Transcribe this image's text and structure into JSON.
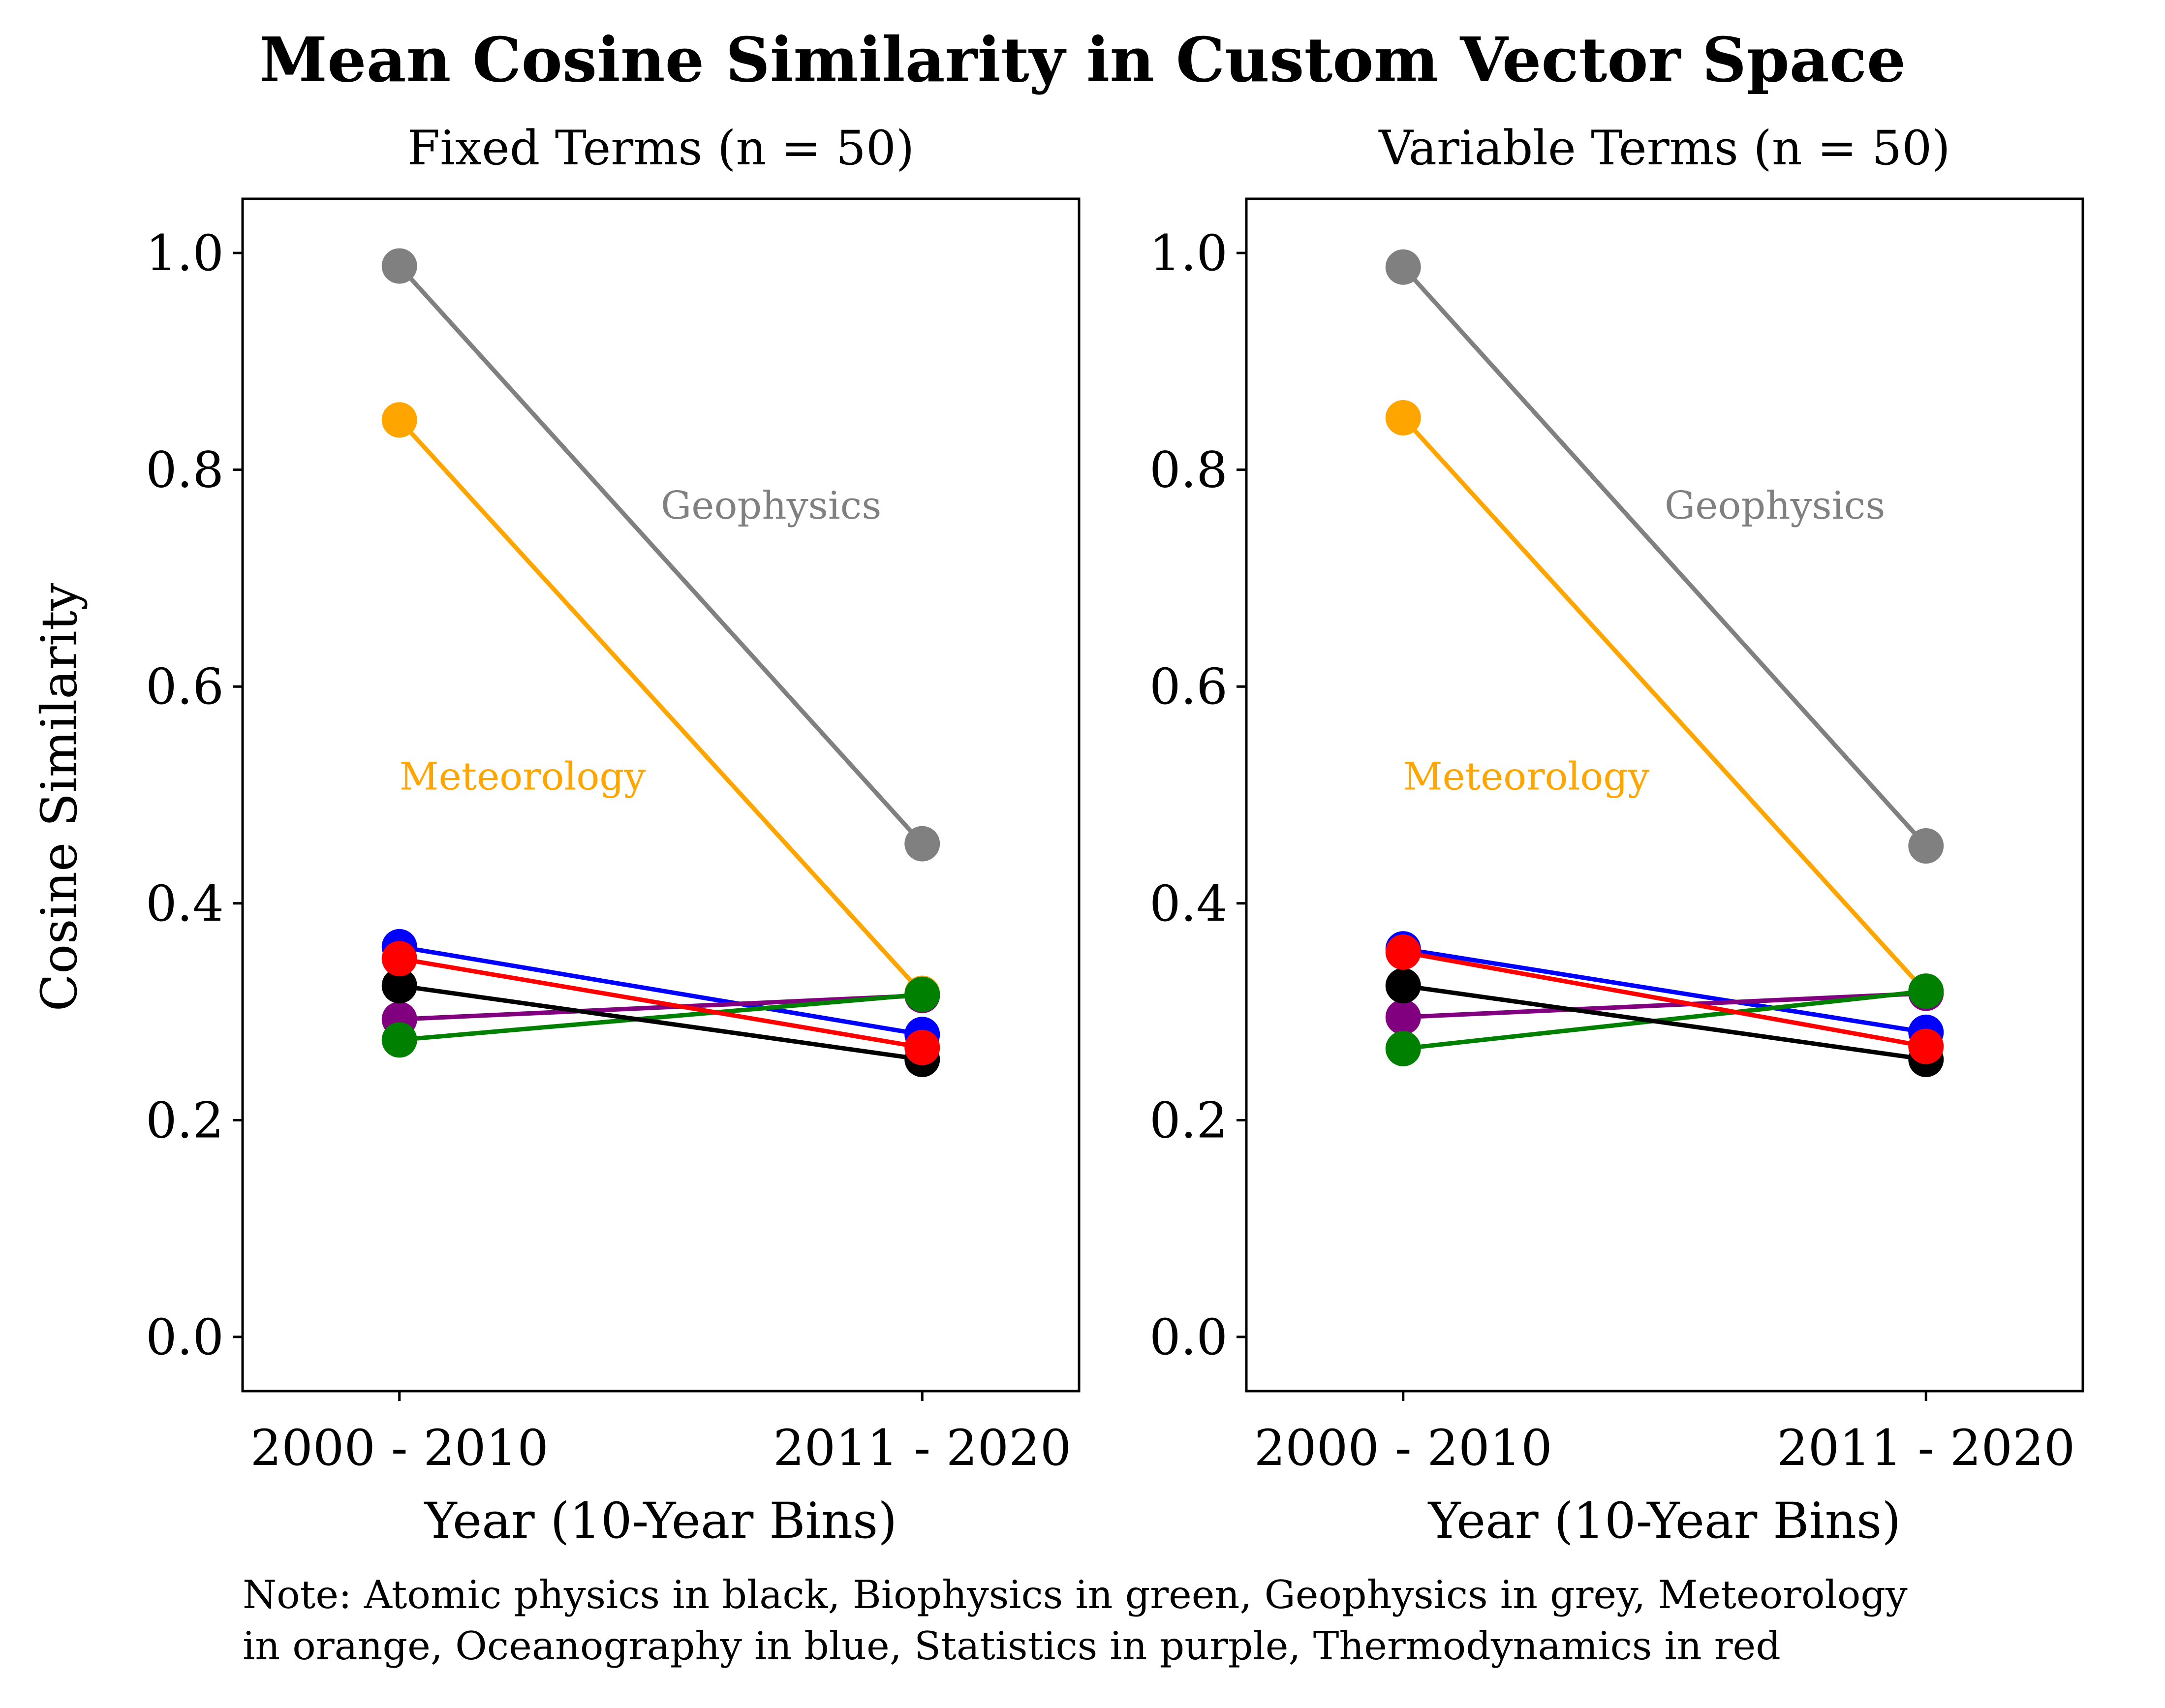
{
  "chart_data": {
    "type": "line",
    "title": "Mean Cosine Similarity in Custom Vector Space",
    "ylabel": "Cosine Similarity",
    "xlabel": "Year (10-Year Bins)",
    "categories": [
      "2000 - 2010",
      "2011 - 2020"
    ],
    "ylim": [
      -0.05,
      1.05
    ],
    "yticks": [
      0.0,
      0.2,
      0.4,
      0.6,
      0.8,
      1.0
    ],
    "ytick_labels": [
      "0.0",
      "0.2",
      "0.4",
      "0.6",
      "0.8",
      "1.0"
    ],
    "grid": false,
    "note": [
      "Note: Atomic physics in black, Biophysics in green, Geophysics in grey, Meteorology",
      "in orange, Oceanography in blue, Statistics in purple, Thermodynamics in red"
    ],
    "panels": [
      {
        "subtitle": "Fixed Terms (n = 50)",
        "annotations": [
          {
            "text": "Geophysics",
            "x": 0.5,
            "y": 0.755,
            "color": "#808080"
          },
          {
            "text": "Meteorology",
            "x": 0.0,
            "y": 0.505,
            "color": "#FFA500"
          }
        ],
        "series": [
          {
            "color": "#808080",
            "values": [
              0.988,
              0.455
            ]
          },
          {
            "color": "#FFA500",
            "values": [
              0.846,
              0.317
            ]
          },
          {
            "color": "#0000FF",
            "values": [
              0.36,
              0.279
            ]
          },
          {
            "color": "#800080",
            "values": [
              0.293,
              0.315
            ]
          },
          {
            "color": "#008000",
            "values": [
              0.274,
              0.316
            ]
          },
          {
            "color": "#000000",
            "values": [
              0.324,
              0.256
            ]
          },
          {
            "color": "#FF0000",
            "values": [
              0.349,
              0.267
            ]
          }
        ]
      },
      {
        "subtitle": "Variable Terms (n = 50)",
        "annotations": [
          {
            "text": "Geophysics",
            "x": 0.5,
            "y": 0.755,
            "color": "#808080"
          },
          {
            "text": "Meteorology",
            "x": 0.0,
            "y": 0.505,
            "color": "#FFA500"
          }
        ],
        "series": [
          {
            "color": "#808080",
            "values": [
              0.987,
              0.453
            ]
          },
          {
            "color": "#FFA500",
            "values": [
              0.848,
              0.318
            ]
          },
          {
            "color": "#0000FF",
            "values": [
              0.358,
              0.281
            ]
          },
          {
            "color": "#800080",
            "values": [
              0.295,
              0.317
            ]
          },
          {
            "color": "#008000",
            "values": [
              0.266,
              0.319
            ]
          },
          {
            "color": "#000000",
            "values": [
              0.324,
              0.256
            ]
          },
          {
            "color": "#FF0000",
            "values": [
              0.355,
              0.268
            ]
          }
        ]
      }
    ]
  }
}
